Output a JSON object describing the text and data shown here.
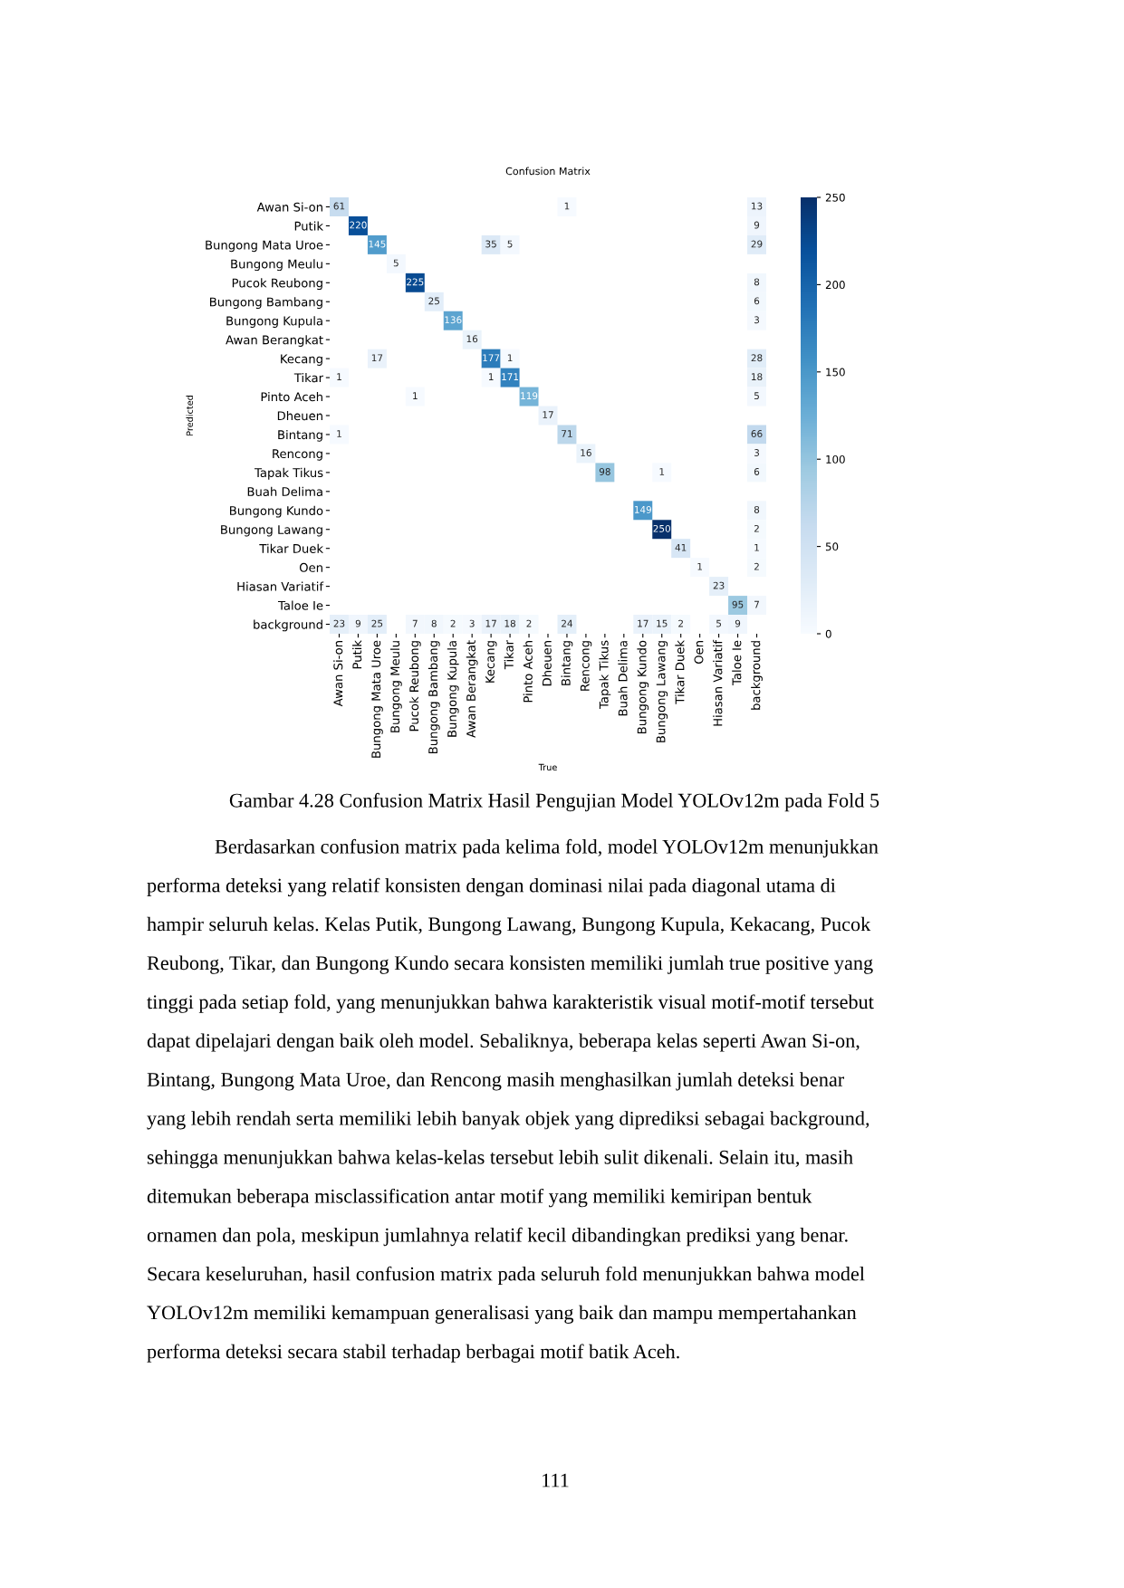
{
  "chart_data": {
    "type": "heatmap",
    "title": "Confusion Matrix",
    "xlabel": "True",
    "ylabel": "Predicted",
    "categories": [
      "Awan Si-on",
      "Putik",
      "Bungong Mata Uroe",
      "Bungong Meulu",
      "Pucok Reubong",
      "Bungong Bambang",
      "Bungong Kupula",
      "Awan Berangkat",
      "Kecang",
      "Tikar",
      "Pinto Aceh",
      "Dheuen",
      "Bintang",
      "Rencong",
      "Tapak Tikus",
      "Buah Delima",
      "Bungong Kundo",
      "Bungong Lawang",
      "Tikar Duek",
      "Oen",
      "Hiasan Variatif",
      "Taloe Ie",
      "background"
    ],
    "y_categories": [
      "Awan Si-on",
      "Putik",
      "Bungong Mata Uroe",
      "Bungong Meulu",
      "Pucok Reubong",
      "Bungong Bambang",
      "Bungong Kupula",
      "Awan Berangkat",
      "Kecang",
      "Tikar",
      "Pinto Aceh",
      "Dheuen",
      "Bintang",
      "Rencong",
      "Tapak Tikus",
      "Buah Delima",
      "Bungong Kundo",
      "Bungong Lawang",
      "Tikar Duek",
      "Oen",
      "Hiasan Variatif",
      "Taloe Ie",
      "background"
    ],
    "cells": [
      [
        61,
        null,
        null,
        null,
        null,
        null,
        null,
        null,
        null,
        null,
        null,
        null,
        1,
        null,
        null,
        null,
        null,
        null,
        null,
        null,
        null,
        null,
        13
      ],
      [
        null,
        220,
        null,
        null,
        null,
        null,
        null,
        null,
        null,
        null,
        null,
        null,
        null,
        null,
        null,
        null,
        null,
        null,
        null,
        null,
        null,
        null,
        9
      ],
      [
        null,
        null,
        145,
        null,
        null,
        null,
        null,
        null,
        35,
        5,
        null,
        null,
        null,
        null,
        null,
        null,
        null,
        null,
        null,
        null,
        null,
        null,
        29
      ],
      [
        null,
        null,
        null,
        5,
        null,
        null,
        null,
        null,
        null,
        null,
        null,
        null,
        null,
        null,
        null,
        null,
        null,
        null,
        null,
        null,
        null,
        null,
        null
      ],
      [
        null,
        null,
        null,
        null,
        225,
        null,
        null,
        null,
        null,
        null,
        null,
        null,
        null,
        null,
        null,
        null,
        null,
        null,
        null,
        null,
        null,
        null,
        8
      ],
      [
        null,
        null,
        null,
        null,
        null,
        25,
        null,
        null,
        null,
        null,
        null,
        null,
        null,
        null,
        null,
        null,
        null,
        null,
        null,
        null,
        null,
        null,
        6
      ],
      [
        null,
        null,
        null,
        null,
        null,
        null,
        136,
        null,
        null,
        null,
        null,
        null,
        null,
        null,
        null,
        null,
        null,
        null,
        null,
        null,
        null,
        null,
        3
      ],
      [
        null,
        null,
        null,
        null,
        null,
        null,
        null,
        16,
        null,
        null,
        null,
        null,
        null,
        null,
        null,
        null,
        null,
        null,
        null,
        null,
        null,
        null,
        null
      ],
      [
        null,
        null,
        17,
        null,
        null,
        null,
        null,
        null,
        177,
        1,
        null,
        null,
        null,
        null,
        null,
        null,
        null,
        null,
        null,
        null,
        null,
        null,
        28
      ],
      [
        1,
        null,
        null,
        null,
        null,
        null,
        null,
        null,
        1,
        171,
        null,
        null,
        null,
        null,
        null,
        null,
        null,
        null,
        null,
        null,
        null,
        null,
        18
      ],
      [
        null,
        null,
        null,
        null,
        1,
        null,
        null,
        null,
        null,
        null,
        119,
        null,
        null,
        null,
        null,
        null,
        null,
        null,
        null,
        null,
        null,
        null,
        5
      ],
      [
        null,
        null,
        null,
        null,
        null,
        null,
        null,
        null,
        null,
        null,
        null,
        17,
        null,
        null,
        null,
        null,
        null,
        null,
        null,
        null,
        null,
        null,
        null
      ],
      [
        1,
        null,
        null,
        null,
        null,
        null,
        null,
        null,
        null,
        null,
        null,
        null,
        71,
        null,
        null,
        null,
        null,
        null,
        null,
        null,
        null,
        null,
        66
      ],
      [
        null,
        null,
        null,
        null,
        null,
        null,
        null,
        null,
        null,
        null,
        null,
        null,
        null,
        16,
        null,
        null,
        null,
        null,
        null,
        null,
        null,
        null,
        3
      ],
      [
        null,
        null,
        null,
        null,
        null,
        null,
        null,
        null,
        null,
        null,
        null,
        null,
        null,
        null,
        98,
        null,
        null,
        1,
        null,
        null,
        null,
        null,
        6
      ],
      [
        null,
        null,
        null,
        null,
        null,
        null,
        null,
        null,
        null,
        null,
        null,
        null,
        null,
        null,
        null,
        null,
        null,
        null,
        null,
        null,
        null,
        null,
        null
      ],
      [
        null,
        null,
        null,
        null,
        null,
        null,
        null,
        null,
        null,
        null,
        null,
        null,
        null,
        null,
        null,
        null,
        149,
        null,
        null,
        null,
        null,
        null,
        8
      ],
      [
        null,
        null,
        null,
        null,
        null,
        null,
        null,
        null,
        null,
        null,
        null,
        null,
        null,
        null,
        null,
        null,
        null,
        250,
        null,
        null,
        null,
        null,
        2
      ],
      [
        null,
        null,
        null,
        null,
        null,
        null,
        null,
        null,
        null,
        null,
        null,
        null,
        null,
        null,
        null,
        null,
        null,
        null,
        41,
        null,
        null,
        null,
        1
      ],
      [
        null,
        null,
        null,
        null,
        null,
        null,
        null,
        null,
        null,
        null,
        null,
        null,
        null,
        null,
        null,
        null,
        null,
        null,
        null,
        1,
        null,
        null,
        2
      ],
      [
        null,
        null,
        null,
        null,
        null,
        null,
        null,
        null,
        null,
        null,
        null,
        null,
        null,
        null,
        null,
        null,
        null,
        null,
        null,
        null,
        23,
        null,
        null
      ],
      [
        null,
        null,
        null,
        null,
        null,
        null,
        null,
        null,
        null,
        null,
        null,
        null,
        null,
        null,
        null,
        null,
        null,
        null,
        null,
        null,
        null,
        95,
        7
      ],
      [
        23,
        9,
        25,
        null,
        7,
        8,
        2,
        3,
        17,
        18,
        2,
        null,
        24,
        null,
        null,
        null,
        17,
        15,
        2,
        null,
        5,
        9,
        null
      ]
    ],
    "clim": [
      0,
      250
    ],
    "cticks": [
      0,
      50,
      100,
      150,
      200,
      250
    ],
    "data_labels": true,
    "annotations": [
      "Gambar 4.28 Confusion Matrix Hasil Pengujian Model YOLOv12m pada Fold 5",
      "Berdasarkan confusion matrix pada kelima fold, model YOLOv12m menunjukkan",
      "performa deteksi yang relatif konsisten dengan dominasi nilai pada diagonal utama di",
      "hampir seluruh kelas. Kelas Putik, Bungong Lawang, Bungong Kupula, Kekacang, Pucok",
      "Reubong, Tikar, dan Bungong Kundo secara konsisten memiliki jumlah true positive yang",
      "tinggi pada setiap fold, yang menunjukkan bahwa karakteristik visual motif-motif tersebut",
      "dapat dipelajari dengan baik oleh model. Sebaliknya, beberapa kelas seperti Awan Si-on,",
      "Bintang, Bungong Mata Uroe, dan Rencong masih menghasilkan jumlah deteksi benar",
      "yang lebih rendah serta memiliki lebih banyak objek yang diprediksi sebagai background,",
      "sehingga menunjukkan bahwa kelas-kelas tersebut lebih sulit dikenali. Selain itu, masih",
      "ditemukan beberapa misclassification antar motif yang memiliki kemiripan bentuk",
      "ornamen dan pola, meskipun jumlahnya relatif kecil dibandingkan prediksi yang benar.",
      "Secara keseluruhan, hasil confusion matrix pada seluruh fold menunjukkan bahwa model",
      "YOLOv12m memiliki kemampuan generalisasi yang baik dan mampu mempertahankan",
      "performa deteksi secara stabil terhadap berbagai motif batik Aceh.",
      "111"
    ]
  }
}
